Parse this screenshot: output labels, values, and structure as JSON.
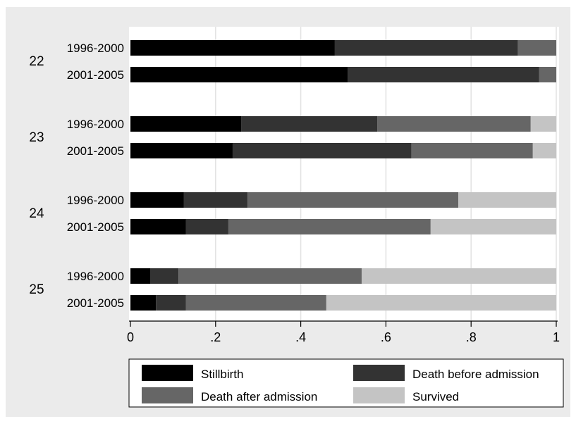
{
  "chart_data": {
    "type": "bar",
    "orientation": "horizontal",
    "stacked": true,
    "groups": [
      "22",
      "23",
      "24",
      "25"
    ],
    "periods": [
      "1996-2000",
      "2001-2005"
    ],
    "series": [
      {
        "name": "Stillbirth",
        "color": "#000000",
        "values": [
          [
            0.48,
            0.51
          ],
          [
            0.26,
            0.24
          ],
          [
            0.125,
            0.13
          ],
          [
            0.047,
            0.06
          ]
        ]
      },
      {
        "name": "Death before admission",
        "color": "#333333",
        "values": [
          [
            0.43,
            0.45
          ],
          [
            0.32,
            0.42
          ],
          [
            0.15,
            0.1
          ],
          [
            0.066,
            0.07
          ]
        ]
      },
      {
        "name": "Death after admission",
        "color": "#666666",
        "values": [
          [
            0.09,
            0.04
          ],
          [
            0.36,
            0.285
          ],
          [
            0.495,
            0.475
          ],
          [
            0.43,
            0.33
          ]
        ]
      },
      {
        "name": "Survived",
        "color": "#c4c4c4",
        "values": [
          [
            0.0,
            0.0
          ],
          [
            0.06,
            0.055
          ],
          [
            0.23,
            0.295
          ],
          [
            0.457,
            0.54
          ]
        ]
      }
    ],
    "xlim": [
      0,
      1
    ],
    "xticks": [
      0,
      0.2,
      0.4,
      0.6,
      0.8,
      1
    ],
    "xtick_labels": [
      "0",
      ".2",
      ".4",
      ".6",
      ".8",
      "1"
    ],
    "grid": true,
    "legend_position": "bottom",
    "colors": {
      "outer_background": "#ebebeb",
      "plot_background": "#ffffff",
      "grid": "#e2e2e2"
    }
  }
}
